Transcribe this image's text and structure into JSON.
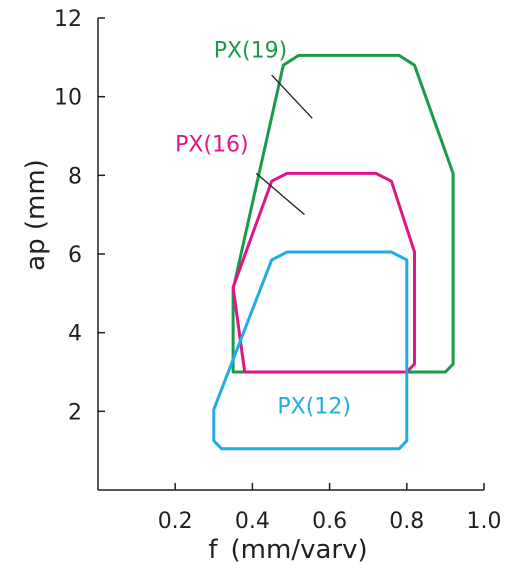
{
  "chart_data": {
    "type": "area",
    "xlabel": "f (mm/varv)",
    "ylabel": "ap (mm)",
    "xlim": [
      0,
      1.0
    ],
    "ylim": [
      0,
      12
    ],
    "xticks": [
      0.2,
      0.4,
      0.6,
      0.8,
      1.0
    ],
    "xtick_labels": [
      "0.2",
      "0.4",
      "0.6",
      "0.8",
      "1.0"
    ],
    "yticks": [
      2,
      4,
      6,
      8,
      10,
      12
    ],
    "ytick_labels": [
      "2",
      "4",
      "6",
      "8",
      "10",
      "12"
    ],
    "grid": false,
    "series": [
      {
        "name": "PX(19)",
        "color": "#1a9a4a",
        "points": [
          [
            0.35,
            3.0
          ],
          [
            0.35,
            5.1
          ],
          [
            0.48,
            10.8
          ],
          [
            0.52,
            11.05
          ],
          [
            0.78,
            11.05
          ],
          [
            0.82,
            10.8
          ],
          [
            0.92,
            8.05
          ],
          [
            0.92,
            3.2
          ],
          [
            0.9,
            3.0
          ]
        ],
        "label_pos": [
          0.395,
          11.0
        ],
        "pointer_from": [
          0.45,
          10.55
        ],
        "pointer_to": [
          0.555,
          9.45
        ]
      },
      {
        "name": "PX(16)",
        "color": "#e0158a",
        "points": [
          [
            0.35,
            5.15
          ],
          [
            0.45,
            7.85
          ],
          [
            0.49,
            8.05
          ],
          [
            0.72,
            8.05
          ],
          [
            0.76,
            7.85
          ],
          [
            0.82,
            6.05
          ],
          [
            0.82,
            3.2
          ],
          [
            0.8,
            3.0
          ],
          [
            0.38,
            3.0
          ]
        ],
        "label_pos": [
          0.295,
          8.6
        ],
        "pointer_from": [
          0.41,
          8.05
        ],
        "pointer_to": [
          0.535,
          7.0
        ]
      },
      {
        "name": "PX(12)",
        "color": "#1eaee6",
        "points": [
          [
            0.3,
            2.05
          ],
          [
            0.45,
            5.85
          ],
          [
            0.49,
            6.05
          ],
          [
            0.76,
            6.05
          ],
          [
            0.8,
            5.85
          ],
          [
            0.8,
            1.25
          ],
          [
            0.78,
            1.05
          ],
          [
            0.32,
            1.05
          ],
          [
            0.3,
            1.25
          ]
        ],
        "label_pos": [
          0.56,
          1.95
        ]
      }
    ]
  }
}
